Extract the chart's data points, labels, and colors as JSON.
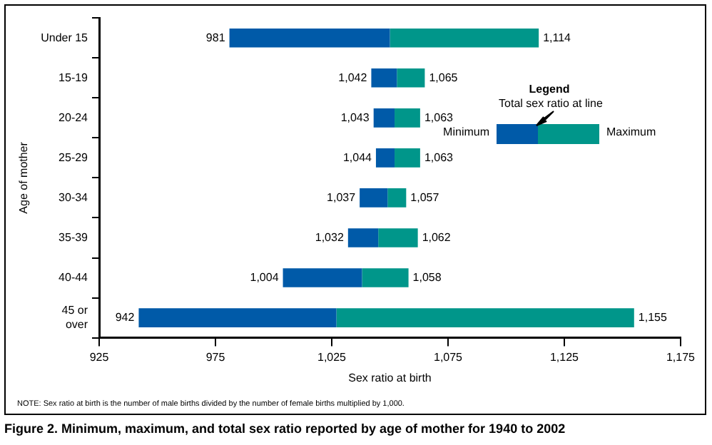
{
  "chart_data": {
    "type": "bar",
    "orientation": "horizontal",
    "title": "Figure 2. Minimum, maximum, and total sex ratio reported by age of mother for 1940 to 2002",
    "xlabel": "Sex ratio at birth",
    "ylabel": "Age of mother",
    "categories": [
      "Under 15",
      "15-19",
      "20-24",
      "25-29",
      "30-34",
      "35-39",
      "40-44",
      "45 or over"
    ],
    "series": [
      {
        "color": "#005aa8",
        "base": [
          981,
          1042,
          1043,
          1044,
          1037,
          1032,
          1004,
          942
        ],
        "values": [
          69,
          11,
          9,
          8,
          12,
          13,
          34,
          85
        ]
      },
      {
        "color": "#00968a",
        "base": [
          1050,
          1053,
          1052,
          1052,
          1049,
          1045,
          1038,
          1027
        ],
        "values": [
          64,
          12,
          11,
          11,
          8,
          17,
          20,
          128
        ]
      }
    ],
    "xlim": [
      925,
      1175
    ],
    "xticks": [
      925,
      975,
      {
        "value": 1025,
        "label": "1,025"
      },
      {
        "value": 1075,
        "label": "1,075"
      },
      {
        "value": 1125,
        "label": "1,125"
      },
      {
        "value": 1175,
        "label": "1,175"
      }
    ],
    "annotations": [
      "Legend",
      "Total sex ratio at line",
      "Minimum",
      "Maximum",
      "NOTE: Sex ratio at birth is the number of male births divided by the number of female births multiplied by 1,000.",
      {
        "text": "981",
        "x": 981,
        "y": "Under 15"
      },
      {
        "text": "1,114",
        "x": 1114,
        "y": "Under 15"
      },
      {
        "text": "1,042",
        "x": 1042,
        "y": "15-19"
      },
      {
        "text": "1,065",
        "x": 1065,
        "y": "15-19"
      },
      {
        "text": "1,043",
        "x": 1043,
        "y": "20-24"
      },
      {
        "text": "1,063",
        "x": 1063,
        "y": "20-24"
      },
      {
        "text": "1,044",
        "x": 1044,
        "y": "25-29"
      },
      {
        "text": "1,063",
        "x": 1063,
        "y": "25-29"
      },
      {
        "text": "1,037",
        "x": 1037,
        "y": "30-34"
      },
      {
        "text": "1,057",
        "x": 1057,
        "y": "30-34"
      },
      {
        "text": "1,032",
        "x": 1032,
        "y": "35-39"
      },
      {
        "text": "1,062",
        "x": 1062,
        "y": "35-39"
      },
      {
        "text": "1,004",
        "x": 1004,
        "y": "40-44"
      },
      {
        "text": "1,058",
        "x": 1058,
        "y": "40-44"
      },
      {
        "text": "942",
        "x": 942,
        "y": "45 or over"
      },
      {
        "text": "1,155",
        "x": 1155,
        "y": "45 or over"
      }
    ]
  }
}
